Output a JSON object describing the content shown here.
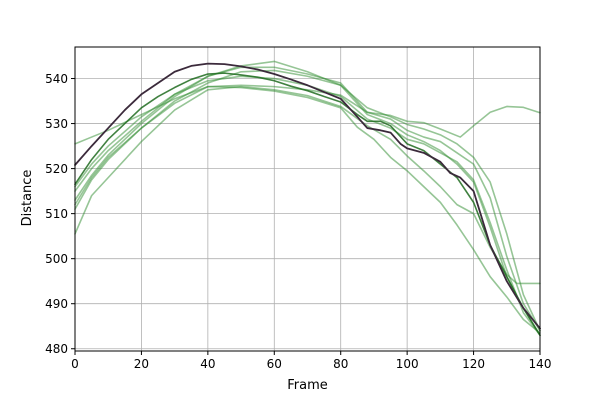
{
  "chart_data": {
    "type": "line",
    "title": "",
    "xlabel": "Frame",
    "ylabel": "Distance",
    "xlim": [
      0,
      140
    ],
    "ylim": [
      479.5,
      547
    ],
    "grid": true,
    "legend": "none",
    "xticks": [
      0,
      20,
      40,
      60,
      80,
      100,
      120,
      140
    ],
    "yticks": [
      480,
      490,
      500,
      510,
      520,
      530,
      540
    ],
    "series": [
      {
        "color": "#2e8b2e",
        "opacity": 0.5,
        "x": [
          0,
          5,
          10,
          20,
          30,
          40,
          50,
          60,
          70,
          80,
          88,
          95,
          100,
          105,
          110,
          116,
          120,
          125,
          130,
          135,
          140
        ],
        "y": [
          525.5,
          527,
          528.5,
          532,
          535.5,
          538.2,
          538.5,
          538.2,
          537.5,
          536.3,
          532.5,
          531.8,
          530.5,
          530.2,
          528.8,
          527,
          529.5,
          532.5,
          533.8,
          533.6,
          532.4
        ]
      },
      {
        "color": "#2e8b2e",
        "opacity": 0.5,
        "x": [
          0,
          5,
          10,
          20,
          30,
          40,
          50,
          60,
          70,
          80,
          88,
          95,
          100,
          105,
          110,
          115,
          120,
          125,
          130,
          133,
          136,
          140
        ],
        "y": [
          505.5,
          514,
          518,
          526,
          533,
          537.5,
          538.2,
          537.5,
          536.2,
          533.8,
          529.5,
          526.5,
          522.8,
          519.5,
          516,
          512,
          510,
          502.5,
          496.5,
          494.5,
          494.5,
          494.5
        ]
      },
      {
        "color": "#2e8b2e",
        "opacity": 0.5,
        "x": [
          0,
          5,
          10,
          20,
          30,
          40,
          50,
          60,
          70,
          80,
          85,
          90,
          95,
          100,
          105,
          110,
          115,
          120,
          125,
          130,
          135,
          140
        ],
        "y": [
          512,
          518,
          522.5,
          529,
          534.5,
          538.2,
          538,
          537.2,
          535.8,
          533.5,
          529.2,
          526.5,
          522.5,
          519.5,
          516,
          512.5,
          507.5,
          502,
          496,
          491.5,
          486.5,
          483.5
        ]
      },
      {
        "color": "#2e8b2e",
        "opacity": 0.5,
        "x": [
          0,
          5,
          10,
          20,
          30,
          40,
          50,
          60,
          70,
          80,
          88,
          95,
          100,
          105,
          110,
          115,
          120,
          125,
          130,
          135,
          140
        ],
        "y": [
          515,
          520,
          524,
          530.5,
          536.5,
          540.5,
          542.8,
          543.8,
          541.5,
          538.5,
          533.5,
          531.5,
          529.8,
          528.8,
          527.5,
          525.5,
          522.5,
          517,
          505.5,
          492,
          484
        ]
      },
      {
        "color": "#2e8b2e",
        "opacity": 0.5,
        "x": [
          0,
          5,
          10,
          20,
          30,
          40,
          50,
          60,
          70,
          80,
          88,
          95,
          100,
          105,
          110,
          115,
          120,
          125,
          130,
          135,
          140
        ],
        "y": [
          513,
          518.5,
          523,
          530,
          536,
          540.5,
          542.5,
          542.5,
          541,
          539,
          532.5,
          531,
          528.5,
          527,
          526,
          523.5,
          521,
          513.5,
          500.5,
          490,
          484
        ]
      },
      {
        "color": "#2e8b2e",
        "opacity": 0.5,
        "x": [
          0,
          5,
          10,
          20,
          30,
          40,
          50,
          60,
          70,
          80,
          88,
          95,
          100,
          105,
          110,
          115,
          120,
          125,
          130,
          135,
          140
        ],
        "y": [
          511,
          517.5,
          522,
          529,
          535,
          539,
          541.5,
          541.8,
          540.5,
          538.5,
          532,
          530,
          527.5,
          526,
          524,
          521,
          517,
          507,
          496,
          489,
          483
        ]
      },
      {
        "color": "#2e8b2e",
        "opacity": 0.5,
        "x": [
          0,
          5,
          10,
          20,
          30,
          40,
          50,
          60,
          70,
          80,
          88,
          95,
          100,
          105,
          110,
          115,
          120,
          125,
          130,
          135,
          140
        ],
        "y": [
          516,
          521,
          525,
          531.5,
          536.5,
          539.5,
          540.5,
          540,
          538.5,
          536,
          531,
          529,
          526.5,
          525.5,
          523.5,
          521.5,
          517.5,
          508,
          497.5,
          488,
          483
        ]
      },
      {
        "color": "#1e6b1e",
        "opacity": 0.85,
        "x": [
          0,
          5,
          10,
          15,
          20,
          25,
          30,
          35,
          40,
          45,
          50,
          55,
          60,
          65,
          70,
          75,
          80,
          85,
          88,
          92,
          95,
          100,
          105,
          110,
          115,
          120,
          125,
          130,
          135,
          140
        ],
        "y": [
          516.5,
          522,
          526.5,
          530,
          533.5,
          536,
          538,
          539.8,
          541,
          541.2,
          540.8,
          540.3,
          539.5,
          538.3,
          537.3,
          536,
          534.8,
          532,
          530.5,
          530.5,
          529.5,
          525.5,
          524,
          521,
          518,
          512.5,
          503,
          496,
          489,
          483
        ]
      },
      {
        "color": "#3b2a3b",
        "opacity": 1.0,
        "x": [
          0,
          5,
          10,
          15,
          20,
          25,
          30,
          35,
          40,
          45,
          50,
          55,
          60,
          65,
          70,
          75,
          80,
          85,
          88,
          92,
          95,
          98,
          100,
          105,
          110,
          113,
          116,
          120,
          125,
          130,
          135,
          140
        ],
        "y": [
          520.8,
          525,
          529,
          533,
          536.5,
          539,
          541.5,
          542.8,
          543.3,
          543.2,
          542.7,
          542,
          541,
          539.8,
          538.5,
          537,
          535.5,
          531.5,
          529,
          528.5,
          528,
          525.5,
          524.5,
          523.5,
          521.5,
          519,
          518,
          515,
          503,
          495,
          489,
          484.5
        ]
      }
    ]
  }
}
